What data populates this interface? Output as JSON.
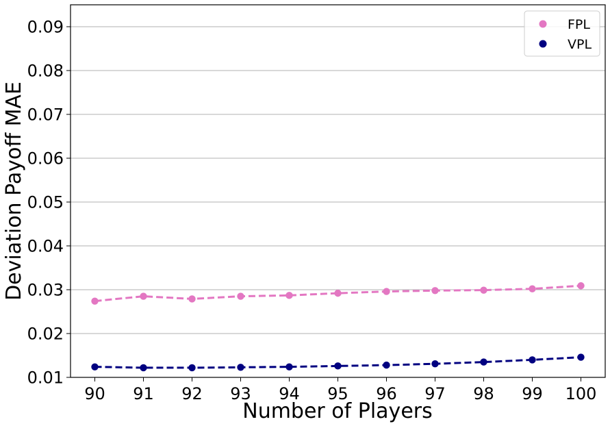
{
  "chart_data": {
    "type": "line",
    "title": "",
    "xlabel": "Number of Players",
    "ylabel": "Deviation Payoff MAE",
    "x": [
      90,
      91,
      92,
      93,
      94,
      95,
      96,
      97,
      98,
      99,
      100
    ],
    "xlim": [
      89.5,
      100.5
    ],
    "ylim": [
      0.01,
      0.095
    ],
    "yticks": [
      "0.01",
      "0.02",
      "0.03",
      "0.04",
      "0.05",
      "0.06",
      "0.07",
      "0.08",
      "0.09"
    ],
    "xticks": [
      "90",
      "91",
      "92",
      "93",
      "94",
      "95",
      "96",
      "97",
      "98",
      "99",
      "100"
    ],
    "grid": "horizontal",
    "legend_position": "top-right",
    "series": [
      {
        "name": "FPL",
        "color": "#e377c2",
        "line_style": "dashed",
        "values": [
          0.0274,
          0.0285,
          0.0279,
          0.0285,
          0.0287,
          0.0292,
          0.0296,
          0.0298,
          0.0299,
          0.0302,
          0.0309
        ]
      },
      {
        "name": "VPL",
        "color": "#000080",
        "line_style": "dashed",
        "values": [
          0.0124,
          0.0122,
          0.0122,
          0.0123,
          0.0124,
          0.0126,
          0.0128,
          0.0131,
          0.0135,
          0.014,
          0.0146
        ]
      }
    ]
  }
}
